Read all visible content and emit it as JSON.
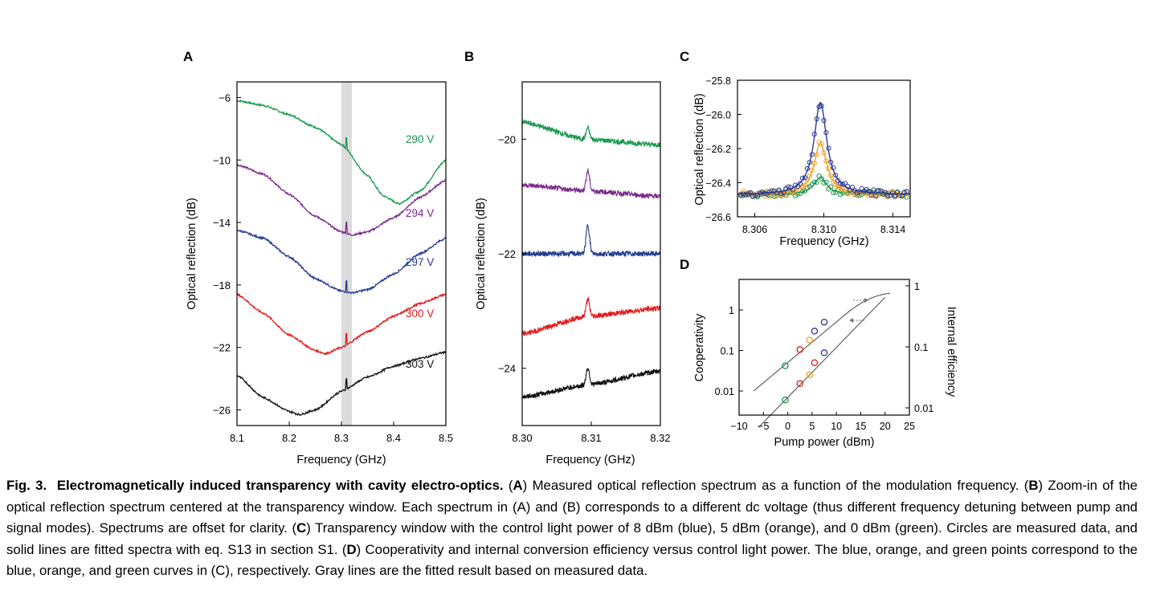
{
  "panels": [
    "A",
    "B",
    "C",
    "D"
  ],
  "caption": {
    "label": "Fig. 3.",
    "title": "Electromagnetically induced transparency with cavity electro-optics.",
    "items": [
      {
        "tag": "A",
        "text": "Measured optical reflection spectrum as a function of the modulation frequency."
      },
      {
        "tag": "B",
        "text": "Zoom-in of the optical reflection spectrum centered at the transparency window. Each spectrum in (A) and (B) corresponds to a different dc voltage (thus different frequency detuning between pump and signal modes). Spectrums are offset for clarity."
      },
      {
        "tag": "C",
        "text": "Transparency window with the control light power of 8 dBm (blue), 5 dBm (orange), and 0 dBm (green). Circles are measured data, and solid lines are fitted spectra with eq. S13 in section S1."
      },
      {
        "tag": "D",
        "text": "Cooperativity and internal conversion efficiency versus control light power. The blue, orange, and green points correspond to the blue, orange, and green curves in (C), respectively. Gray lines are the fitted result based on measured data."
      }
    ]
  },
  "chart_data": [
    {
      "panel": "A",
      "type": "line",
      "xlabel": "Frequency (GHz)",
      "ylabel": "Optical reflection (dB)",
      "xlim": [
        8.1,
        8.5
      ],
      "ylim": [
        -27,
        -5
      ],
      "xticks": [
        "8.1",
        "8.2",
        "8.3",
        "8.4",
        "8.5"
      ],
      "yticks": [
        "−6",
        "−10",
        "−14",
        "−18",
        "−22",
        "−26"
      ],
      "yticks_values": [
        -6,
        -10,
        -14,
        -18,
        -22,
        -26
      ],
      "xticks_values": [
        8.1,
        8.2,
        8.3,
        8.4,
        8.5
      ],
      "highlight_band": [
        8.3,
        8.32
      ],
      "series": [
        {
          "name": "290 V",
          "color": "#1a9850",
          "x": [
            8.1,
            8.15,
            8.2,
            8.25,
            8.3,
            8.35,
            8.38,
            8.41,
            8.45,
            8.5
          ],
          "y": [
            -6.2,
            -6.5,
            -7.1,
            -7.9,
            -9.0,
            -11.0,
            -12.3,
            -12.8,
            -12.0,
            -10.0
          ]
        },
        {
          "name": "294 V",
          "color": "#7b2a8b",
          "x": [
            8.1,
            8.15,
            8.2,
            8.25,
            8.3,
            8.32,
            8.35,
            8.4,
            8.45,
            8.5
          ],
          "y": [
            -10.3,
            -10.9,
            -12.2,
            -13.6,
            -14.6,
            -14.8,
            -14.6,
            -13.7,
            -12.4,
            -11.3
          ]
        },
        {
          "name": "297 V",
          "color": "#243a8f",
          "x": [
            8.1,
            8.15,
            8.2,
            8.25,
            8.3,
            8.32,
            8.35,
            8.4,
            8.45,
            8.5
          ],
          "y": [
            -14.5,
            -15.0,
            -16.2,
            -17.6,
            -18.4,
            -18.5,
            -18.3,
            -17.3,
            -16.0,
            -15.0
          ]
        },
        {
          "name": "300 V",
          "color": "#e41a1c",
          "x": [
            8.1,
            8.15,
            8.2,
            8.25,
            8.27,
            8.3,
            8.35,
            8.4,
            8.45,
            8.5
          ],
          "y": [
            -18.6,
            -19.8,
            -21.2,
            -22.2,
            -22.4,
            -22.0,
            -21.0,
            -20.0,
            -19.2,
            -18.6
          ]
        },
        {
          "name": "303 V",
          "color": "#111111",
          "x": [
            8.1,
            8.15,
            8.2,
            8.22,
            8.25,
            8.3,
            8.35,
            8.4,
            8.45,
            8.5
          ],
          "y": [
            -23.8,
            -25.2,
            -26.1,
            -26.3,
            -26.0,
            -24.8,
            -23.9,
            -23.2,
            -22.7,
            -22.3
          ]
        }
      ],
      "annotations": [
        "290 V",
        "294 V",
        "297 V",
        "300 V",
        "303 V"
      ]
    },
    {
      "panel": "B",
      "type": "line",
      "xlabel": "Frequency (GHz)",
      "ylabel": "Optical reflection (dB)",
      "xlim": [
        8.3,
        8.32
      ],
      "ylim": [
        -25,
        -19
      ],
      "xticks": [
        "8.30",
        "8.31",
        "8.32"
      ],
      "xticks_values": [
        8.3,
        8.31,
        8.32
      ],
      "yticks": [
        "−20",
        "−22",
        "−24"
      ],
      "yticks_values": [
        -20,
        -22,
        -24
      ],
      "series": [
        {
          "color": "#1a9850",
          "x": [
            8.3,
            8.309,
            8.3095,
            8.32
          ],
          "y": [
            -19.7,
            -20.0,
            -19.8,
            -20.1
          ]
        },
        {
          "color": "#7b2a8b",
          "x": [
            8.3,
            8.309,
            8.3095,
            8.32
          ],
          "y": [
            -20.8,
            -20.9,
            -20.55,
            -21.0
          ]
        },
        {
          "color": "#243a8f",
          "x": [
            8.3,
            8.3092,
            8.3095,
            8.32
          ],
          "y": [
            -22.0,
            -22.0,
            -21.5,
            -22.0
          ]
        },
        {
          "color": "#e41a1c",
          "x": [
            8.3,
            8.309,
            8.3095,
            8.32
          ],
          "y": [
            -23.4,
            -23.1,
            -22.8,
            -22.95
          ]
        },
        {
          "color": "#111111",
          "x": [
            8.3,
            8.309,
            8.3095,
            8.32
          ],
          "y": [
            -24.5,
            -24.3,
            -24.0,
            -24.05
          ]
        }
      ]
    },
    {
      "panel": "C",
      "type": "scatter",
      "xlabel": "Frequency (GHz)",
      "ylabel": "Optical reflection (dB)",
      "xlim": [
        8.305,
        8.315
      ],
      "ylim": [
        -26.6,
        -25.8
      ],
      "xticks": [
        "8.306",
        "8.310",
        "8.314"
      ],
      "xticks_values": [
        8.306,
        8.31,
        8.314
      ],
      "yticks": [
        "−25.8",
        "−26.0",
        "−26.2",
        "−26.4",
        "−26.6"
      ],
      "yticks_values": [
        -25.8,
        -26.0,
        -26.2,
        -26.4,
        -26.6
      ],
      "series": [
        {
          "name": "8 dBm",
          "color": "#2b3a96",
          "center": 8.3098,
          "baseline": -26.47,
          "peak": -25.93
        },
        {
          "name": "5 dBm",
          "color": "#f4a020",
          "center": 8.3098,
          "baseline": -26.47,
          "peak": -26.17
        },
        {
          "name": "0 dBm",
          "color": "#1a9850",
          "center": 8.3098,
          "baseline": -26.47,
          "peak": -26.37
        }
      ]
    },
    {
      "panel": "D",
      "type": "scatter",
      "xlabel": "Pump power (dBm)",
      "ylabel": "Cooperativity",
      "y2label": "Internal efficiency",
      "xlim": [
        -10,
        25
      ],
      "xticks": [
        "−10",
        "−5",
        "0",
        "5",
        "10",
        "15",
        "20",
        "25"
      ],
      "xticks_values": [
        -10,
        -5,
        0,
        5,
        10,
        15,
        20,
        25
      ],
      "yticks": [
        "1",
        "0.1",
        "0.01"
      ],
      "y2ticks": [
        "1",
        "0.1",
        "0.01"
      ],
      "series": [
        {
          "name": "Cooperativity",
          "x": [
            -0.5,
            2.5,
            4.5,
            5.5,
            7.5
          ],
          "y": [
            0.042,
            0.105,
            0.18,
            0.3,
            0.5
          ],
          "colors": [
            "#1a9850",
            "#e41a1c",
            "#f4a020",
            "#2b3a96",
            "#2b3a96"
          ]
        },
        {
          "name": "Internal efficiency",
          "x": [
            -0.5,
            2.5,
            4.5,
            5.5,
            7.5
          ],
          "y": [
            0.0135,
            0.025,
            0.035,
            0.055,
            0.08
          ],
          "colors": [
            "#1a9850",
            "#e41a1c",
            "#f4a020",
            "#e41a1c",
            "#2b3a96"
          ]
        }
      ]
    }
  ]
}
